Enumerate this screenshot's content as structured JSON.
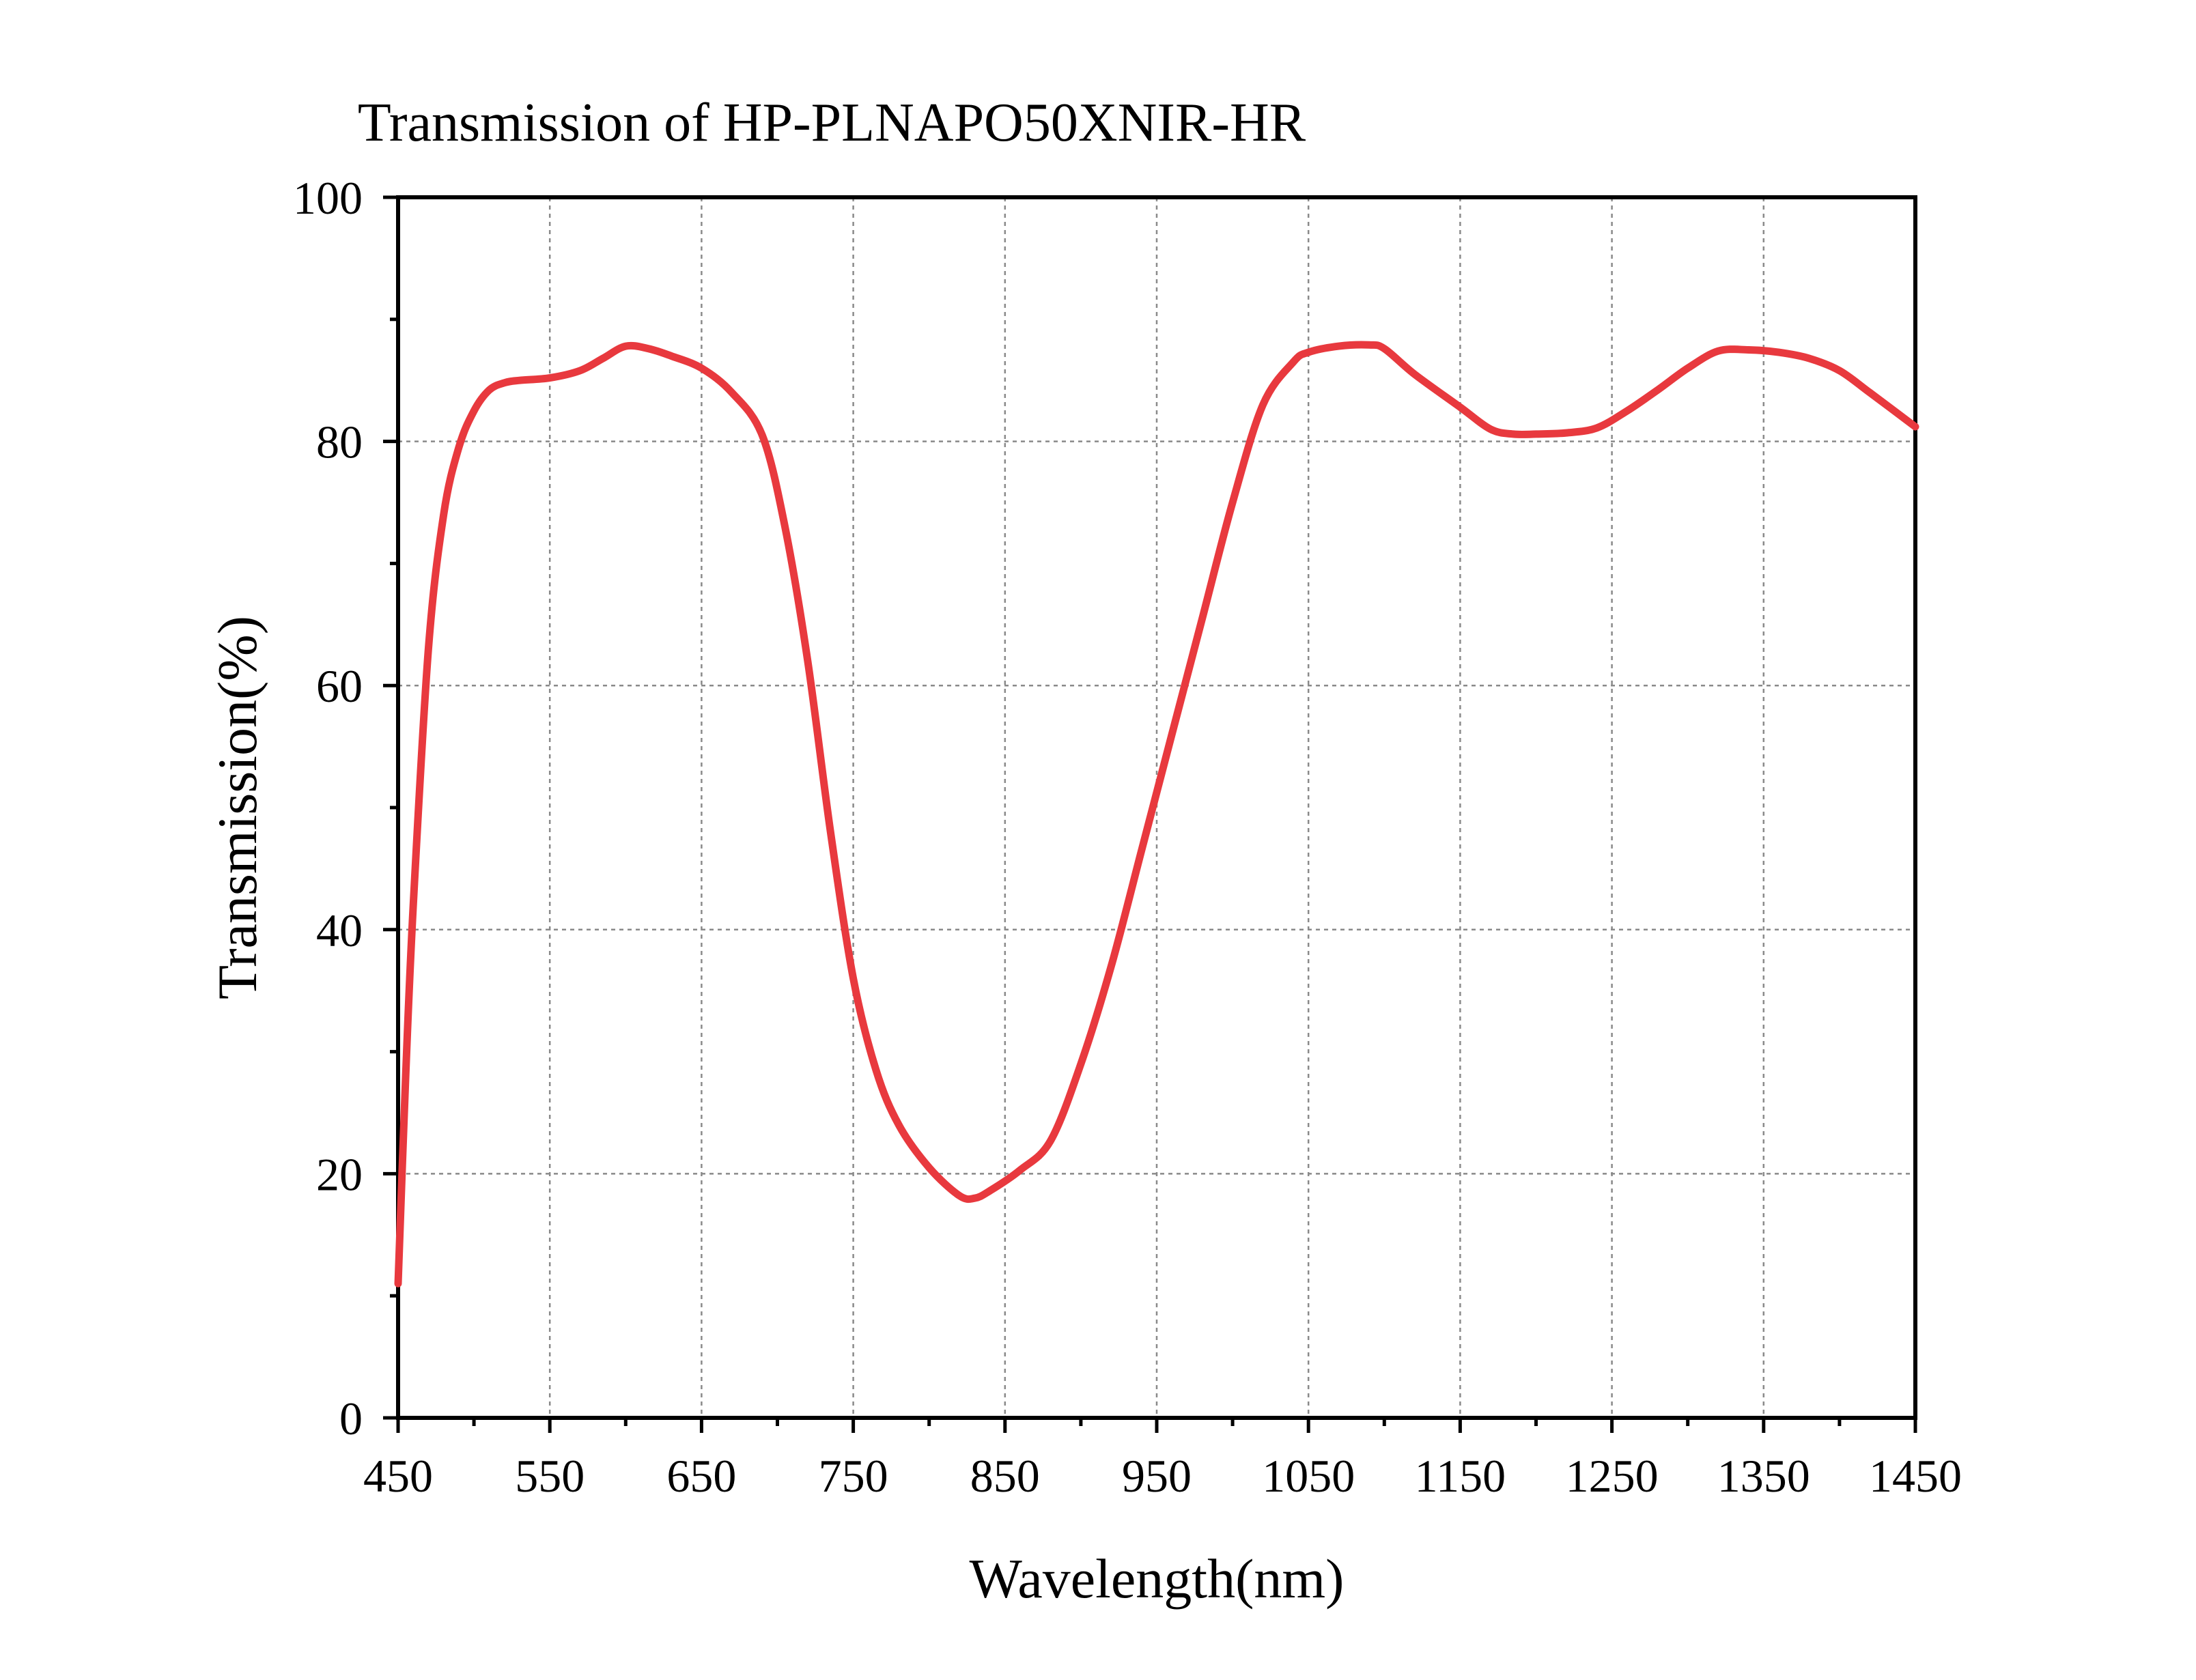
{
  "chart_data": {
    "type": "line",
    "title": "Transmission of HP-PLNAPO50XNIR-HR",
    "xlabel": "Wavelength(nm)",
    "ylabel": "Transmission(%)",
    "xlim": [
      450,
      1450
    ],
    "ylim": [
      0,
      100
    ],
    "x_ticks": [
      450,
      550,
      650,
      750,
      850,
      950,
      1050,
      1150,
      1250,
      1350,
      1450
    ],
    "y_ticks": [
      0,
      20,
      40,
      60,
      80,
      100
    ],
    "x_tick_labels": [
      "450",
      "550",
      "650",
      "750",
      "850",
      "950",
      "1050",
      "1150",
      "1250",
      "1350",
      "1450"
    ],
    "y_tick_labels": [
      "0",
      "20",
      "40",
      "60",
      "80",
      "100"
    ],
    "grid": true,
    "legend": "none",
    "series": [
      {
        "color": "#e8393e",
        "x": [
          450,
          455,
          460,
          470,
          480,
          490,
          500,
          510,
          520,
          530,
          550,
          570,
          585,
          600,
          615,
          630,
          650,
          670,
          690,
          705,
          720,
          735,
          750,
          765,
          780,
          800,
          820,
          830,
          840,
          860,
          880,
          900,
          920,
          940,
          960,
          980,
          1000,
          1020,
          1040,
          1050,
          1070,
          1090,
          1100,
          1120,
          1150,
          1170,
          1185,
          1200,
          1220,
          1240,
          1260,
          1280,
          1300,
          1320,
          1340,
          1360,
          1380,
          1400,
          1420,
          1450
        ],
        "y": [
          11,
          28,
          42,
          63,
          74,
          79.5,
          82.5,
          84.2,
          84.8,
          85,
          85.2,
          85.8,
          86.8,
          87.8,
          87.6,
          87.0,
          86.0,
          84.0,
          80.5,
          73,
          62,
          48,
          36,
          28.5,
          24,
          20.5,
          18.2,
          18.0,
          18.6,
          20.3,
          22.7,
          29,
          37,
          46.5,
          56,
          65.5,
          75,
          83,
          86.5,
          87.3,
          87.8,
          87.9,
          87.6,
          85.5,
          82.8,
          81.0,
          80.6,
          80.6,
          80.7,
          81.1,
          82.5,
          84.2,
          86.0,
          87.4,
          87.5,
          87.3,
          86.8,
          85.8,
          84.0,
          81.2
        ]
      }
    ]
  }
}
